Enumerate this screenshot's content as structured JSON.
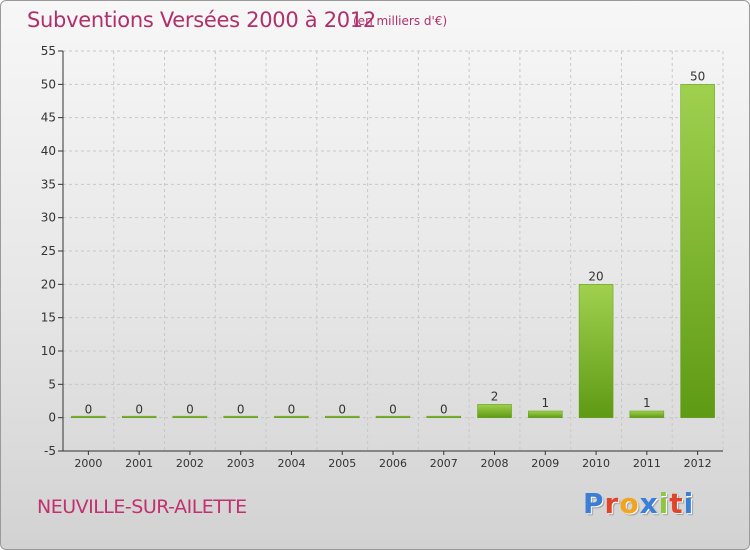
{
  "title": "Subventions Versées 2000 à 2012",
  "unit_note": "(en milliers d'€)",
  "commune": "NEUVILLE-SUR-AILETTE",
  "logo": {
    "text": "Proxiti",
    "letter_colors": [
      "#3a7fd5",
      "#e0452b",
      "#f2a51c",
      "#3a7fd5",
      "#8dc63f",
      "#e0452b",
      "#3a7fd5"
    ]
  },
  "colors": {
    "bar_light": "#9fd14f",
    "bar_dark": "#5f9a14",
    "title": "#b0306b",
    "grid": "#c8c8c8",
    "axis": "#333333"
  },
  "chart_data": {
    "type": "bar",
    "categories": [
      "2000",
      "2001",
      "2002",
      "2003",
      "2004",
      "2005",
      "2006",
      "2007",
      "2008",
      "2009",
      "2010",
      "2011",
      "2012"
    ],
    "values": [
      0,
      0,
      0,
      0,
      0,
      0,
      0,
      0,
      2,
      1,
      20,
      1,
      50
    ],
    "ylim": [
      -5,
      55
    ],
    "yticks": [
      -5,
      0,
      5,
      10,
      15,
      20,
      25,
      30,
      35,
      40,
      45,
      50,
      55
    ],
    "grid": true,
    "legend": "none"
  }
}
